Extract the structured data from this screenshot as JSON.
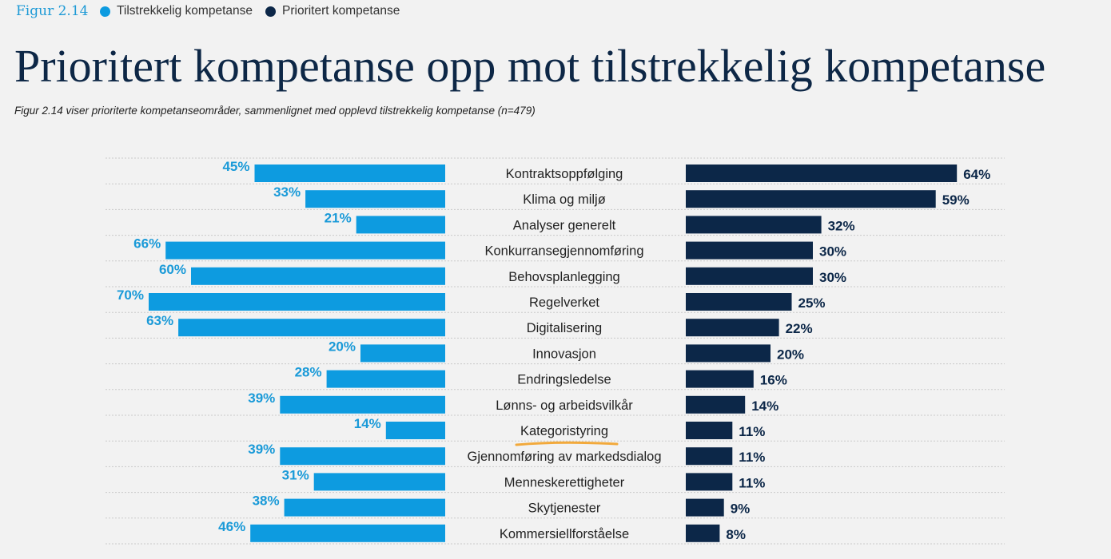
{
  "header": {
    "figure_label": "Figur 2.14",
    "title": "Prioritert kompetanse opp mot tilstrekkelig kompetanse",
    "subtitle": "Figur 2.14 viser prioriterte kompetanseområder, sammenlignet med opplevd tilstrekkelig kompetanse (n=479)"
  },
  "legend": [
    {
      "label": "Tilstrekkelig kompetanse",
      "color": "#0d9be0"
    },
    {
      "label": "Prioritert kompetanse",
      "color": "#0c2748"
    }
  ],
  "colors": {
    "left_bar": "#0d9be0",
    "right_bar": "#0c2748",
    "left_label": "#1a9ad8",
    "right_label": "#0c2748",
    "highlight": "#f2a93b"
  },
  "highlighted_category": "Kategoristyring",
  "chart_data": {
    "type": "bar",
    "title": "Prioritert kompetanse opp mot tilstrekkelig kompetanse",
    "unit": "%",
    "categories": [
      "Kontraktsoppfølging",
      "Klima og miljø",
      "Analyser generelt",
      "Konkurransegjennomføring",
      "Behovsplanlegging",
      "Regelverket",
      "Digitalisering",
      "Innovasjon",
      "Endringsledelse",
      "Lønns- og arbeidsvilkår",
      "Kategoristyring",
      "Gjennomføring av markedsdialog",
      "Menneskerettigheter",
      "Skytjenester",
      "Kommersiellforståelse"
    ],
    "series": [
      {
        "name": "Tilstrekkelig kompetanse",
        "values": [
          45,
          33,
          21,
          66,
          60,
          70,
          63,
          20,
          28,
          39,
          14,
          39,
          31,
          38,
          46
        ]
      },
      {
        "name": "Prioritert kompetanse",
        "values": [
          64,
          59,
          32,
          30,
          30,
          25,
          22,
          20,
          16,
          14,
          11,
          11,
          11,
          9,
          8
        ]
      }
    ],
    "legend_position": "top-left"
  }
}
